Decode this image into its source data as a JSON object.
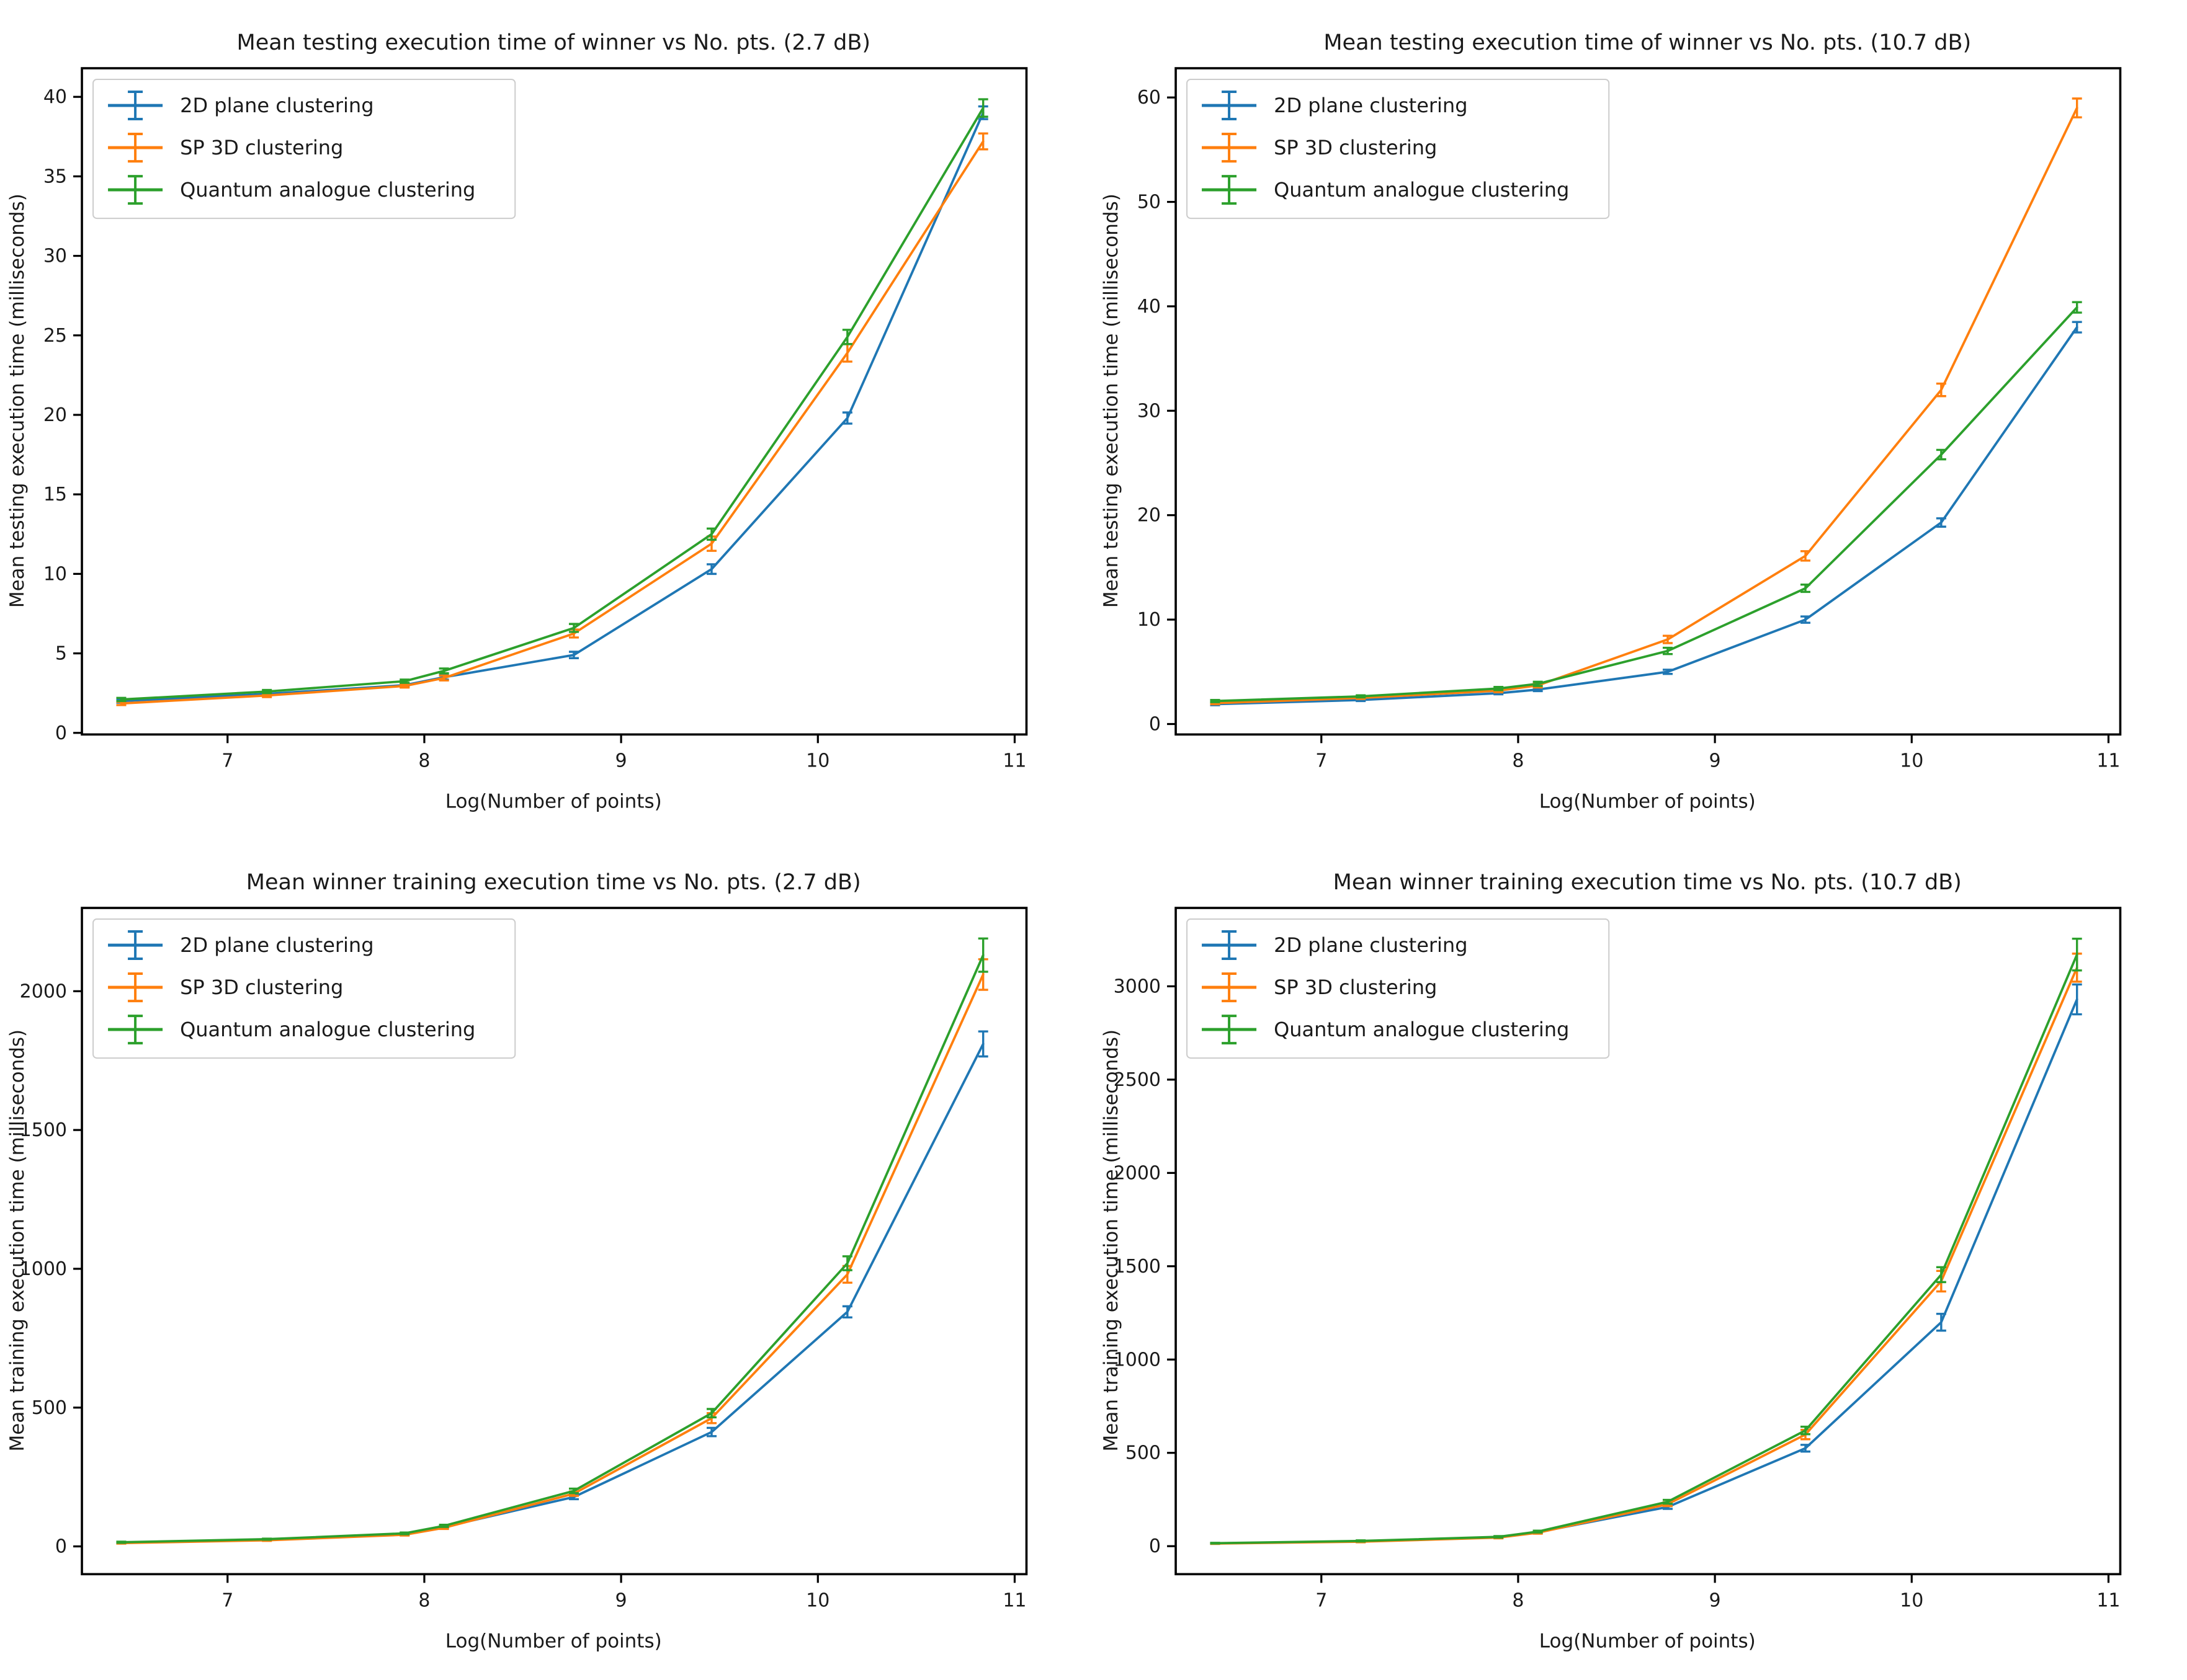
{
  "page": {
    "background": "#ffffff"
  },
  "series_colors": {
    "blue": "#1f77b4",
    "orange": "#ff7f0e",
    "green": "#2ca02c"
  },
  "legend_labels": [
    "2D plane clustering",
    "SP 3D clustering",
    "Quantum analogue clustering"
  ],
  "chart_data": [
    {
      "id": "testing-2-7db",
      "type": "line",
      "title": "Mean testing execution time of winner vs No. pts. (2.7 dB)",
      "xlabel": "Log(Number of points)",
      "ylabel": "Mean testing execution time (milliseconds)",
      "xlim": [
        6.26,
        11.06
      ],
      "ylim": [
        -0.1,
        41.8
      ],
      "xticks": [
        7,
        8,
        9,
        10,
        11
      ],
      "yticks": [
        0,
        5,
        10,
        15,
        20,
        25,
        30,
        35,
        40
      ],
      "grid": false,
      "legend_position": "upper left",
      "x": [
        6.46,
        7.2,
        7.9,
        8.1,
        8.76,
        9.46,
        10.15,
        10.84
      ],
      "series": [
        {
          "name": "2D plane clustering",
          "color": "#1f77b4",
          "values": [
            2.0,
            2.45,
            3.0,
            3.5,
            4.9,
            10.3,
            19.8,
            39.0
          ],
          "yerr": [
            0.1,
            0.1,
            0.1,
            0.15,
            0.2,
            0.3,
            0.35,
            0.4
          ]
        },
        {
          "name": "SP 3D clustering",
          "color": "#ff7f0e",
          "values": [
            1.85,
            2.35,
            2.95,
            3.45,
            6.25,
            11.9,
            23.9,
            37.2
          ],
          "yerr": [
            0.1,
            0.1,
            0.1,
            0.15,
            0.25,
            0.45,
            0.55,
            0.5
          ]
        },
        {
          "name": "Quantum analogue clustering",
          "color": "#2ca02c",
          "values": [
            2.1,
            2.6,
            3.25,
            3.9,
            6.6,
            12.5,
            24.9,
            39.3
          ],
          "yerr": [
            0.1,
            0.1,
            0.1,
            0.15,
            0.25,
            0.35,
            0.45,
            0.55
          ]
        }
      ]
    },
    {
      "id": "testing-10-7db",
      "type": "line",
      "title": "Mean testing execution time of winner vs No. pts. (10.7 dB)",
      "xlabel": "Log(Number of points)",
      "ylabel": "Mean testing execution time (milliseconds)",
      "xlim": [
        6.26,
        11.06
      ],
      "ylim": [
        -1.0,
        62.8
      ],
      "xticks": [
        7,
        8,
        9,
        10,
        11
      ],
      "yticks": [
        0,
        10,
        20,
        30,
        40,
        50,
        60
      ],
      "grid": false,
      "legend_position": "upper left",
      "x": [
        6.46,
        7.2,
        7.9,
        8.1,
        8.76,
        9.46,
        10.15,
        10.84
      ],
      "series": [
        {
          "name": "2D plane clustering",
          "color": "#1f77b4",
          "values": [
            1.9,
            2.3,
            2.95,
            3.3,
            5.0,
            10.0,
            19.3,
            38.0
          ],
          "yerr": [
            0.1,
            0.1,
            0.1,
            0.15,
            0.2,
            0.3,
            0.4,
            0.5
          ]
        },
        {
          "name": "SP 3D clustering",
          "color": "#ff7f0e",
          "values": [
            2.0,
            2.5,
            3.2,
            3.7,
            8.1,
            16.1,
            32.0,
            59.0
          ],
          "yerr": [
            0.1,
            0.1,
            0.15,
            0.2,
            0.35,
            0.45,
            0.6,
            0.9
          ]
        },
        {
          "name": "Quantum analogue clustering",
          "color": "#2ca02c",
          "values": [
            2.2,
            2.65,
            3.4,
            3.85,
            7.0,
            13.0,
            25.8,
            39.9
          ],
          "yerr": [
            0.1,
            0.1,
            0.15,
            0.2,
            0.3,
            0.35,
            0.45,
            0.5
          ]
        }
      ]
    },
    {
      "id": "training-2-7db",
      "type": "line",
      "title": "Mean winner training execution time vs No. pts. (2.7 dB)",
      "xlabel": "Log(Number of points)",
      "ylabel": "Mean training execution time (milliseconds)",
      "xlim": [
        6.26,
        11.06
      ],
      "ylim": [
        -100,
        2300
      ],
      "xticks": [
        7,
        8,
        9,
        10,
        11
      ],
      "yticks": [
        0,
        500,
        1000,
        1500,
        2000
      ],
      "grid": false,
      "legend_position": "upper left",
      "x": [
        6.46,
        7.2,
        7.9,
        8.1,
        8.76,
        9.46,
        10.15,
        10.84
      ],
      "series": [
        {
          "name": "2D plane clustering",
          "color": "#1f77b4",
          "values": [
            14,
            24,
            44,
            70,
            178,
            412,
            845,
            1810
          ],
          "yerr": [
            2,
            2,
            3,
            4,
            8,
            15,
            20,
            45
          ]
        },
        {
          "name": "SP 3D clustering",
          "color": "#ff7f0e",
          "values": [
            12,
            22,
            42,
            67,
            190,
            462,
            980,
            2060
          ],
          "yerr": [
            2,
            2,
            3,
            4,
            8,
            18,
            30,
            55
          ]
        },
        {
          "name": "Quantum analogue clustering",
          "color": "#2ca02c",
          "values": [
            15,
            26,
            47,
            74,
            200,
            480,
            1020,
            2130
          ],
          "yerr": [
            2,
            2,
            3,
            4,
            8,
            15,
            25,
            60
          ]
        }
      ]
    },
    {
      "id": "training-10-7db",
      "type": "line",
      "title": "Mean winner training execution time vs No. pts. (10.7 dB)",
      "xlabel": "Log(Number of points)",
      "ylabel": "Mean training execution time (milliseconds)",
      "xlim": [
        6.26,
        11.06
      ],
      "ylim": [
        -150,
        3420
      ],
      "xticks": [
        7,
        8,
        9,
        10,
        11
      ],
      "yticks": [
        0,
        500,
        1000,
        1500,
        2000,
        2500,
        3000
      ],
      "grid": false,
      "legend_position": "upper left",
      "x": [
        6.46,
        7.2,
        7.9,
        8.1,
        8.76,
        9.46,
        10.15,
        10.84
      ],
      "series": [
        {
          "name": "2D plane clustering",
          "color": "#1f77b4",
          "values": [
            15,
            26,
            48,
            75,
            210,
            525,
            1200,
            2930
          ],
          "yerr": [
            2,
            3,
            4,
            5,
            10,
            18,
            45,
            80
          ]
        },
        {
          "name": "SP 3D clustering",
          "color": "#ff7f0e",
          "values": [
            14,
            24,
            46,
            72,
            225,
            598,
            1420,
            3100
          ],
          "yerr": [
            2,
            3,
            4,
            5,
            10,
            25,
            55,
            75
          ]
        },
        {
          "name": "Quantum analogue clustering",
          "color": "#2ca02c",
          "values": [
            16,
            28,
            50,
            78,
            238,
            620,
            1455,
            3170
          ],
          "yerr": [
            2,
            3,
            4,
            5,
            10,
            20,
            40,
            85
          ]
        }
      ]
    }
  ]
}
